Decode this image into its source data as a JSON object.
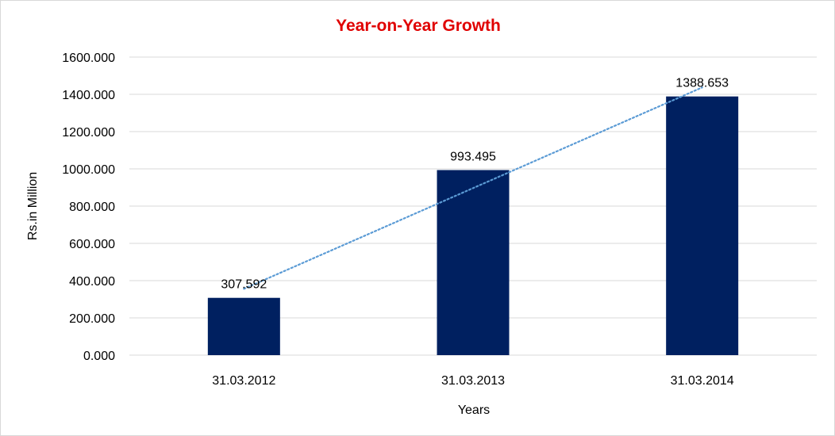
{
  "colors": {
    "title": "#e00000",
    "bar": "#002060",
    "trendline": "#5b9bd5",
    "gridline": "#d9d9d9"
  },
  "chart_data": {
    "type": "bar",
    "title": "Year-on-Year Growth",
    "xlabel": "Years",
    "ylabel": "Rs.in Million",
    "categories": [
      "31.03.2012",
      "31.03.2013",
      "31.03.2014"
    ],
    "values": [
      307.592,
      993.495,
      1388.653
    ],
    "data_labels": [
      "307.592",
      "993.495",
      "1388.653"
    ],
    "ylim": [
      0,
      1600
    ],
    "y_ticks": [
      0,
      200,
      400,
      600,
      800,
      1000,
      1200,
      1400,
      1600
    ],
    "y_tick_labels": [
      "0.000",
      "200.000",
      "400.000",
      "600.000",
      "800.000",
      "1000.000",
      "1200.000",
      "1400.000",
      "1600.000"
    ],
    "grid": true,
    "trendline": "linear",
    "trendline_style": "dotted",
    "legend": "none"
  }
}
